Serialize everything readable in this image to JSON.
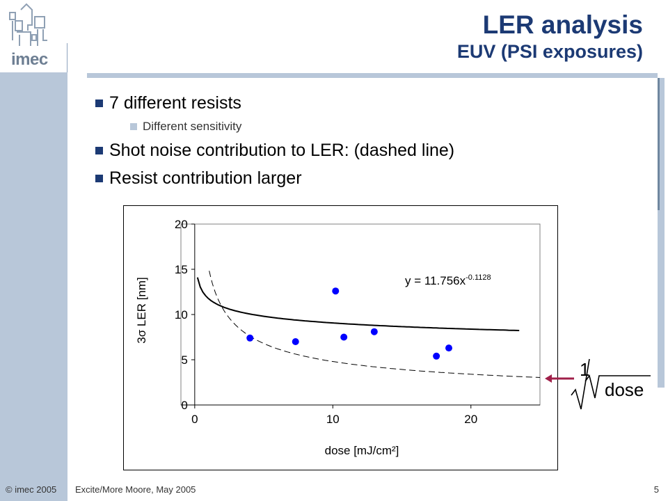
{
  "header": {
    "title": "LER analysis",
    "subtitle": "EUV (PSI exposures)",
    "logo_text": "imec"
  },
  "bullets": [
    {
      "text": "7 different resists",
      "level": 1
    },
    {
      "text": "Different sensitivity",
      "level": 2
    },
    {
      "text": "Shot noise contribution to LER: (dashed line)",
      "level": 1
    },
    {
      "text": "Resist contribution larger",
      "level": 1
    }
  ],
  "footer": {
    "copyright": "© imec 2005",
    "event": "Excite/More Moore, May 2005",
    "page": "5"
  },
  "side_formula": {
    "numerator": "1",
    "radicand": "dose"
  },
  "colors": {
    "accent": "#1c3a74",
    "sidebar": "#b8c7d9",
    "points": "#0000ff",
    "arrow": "#a0204a"
  },
  "chart_data": {
    "type": "scatter",
    "xlabel": "dose [mJ/cm²]",
    "ylabel": "3σ LER [nm]",
    "xlim": [
      -1,
      25
    ],
    "ylim": [
      0,
      20
    ],
    "xticks": [
      "0",
      "10",
      "20"
    ],
    "yticks": [
      "0",
      "5",
      "10",
      "15",
      "20"
    ],
    "grid": false,
    "points": [
      {
        "x": 4.0,
        "y": 7.4
      },
      {
        "x": 7.3,
        "y": 7.0
      },
      {
        "x": 10.2,
        "y": 12.6
      },
      {
        "x": 10.8,
        "y": 7.5
      },
      {
        "x": 13.0,
        "y": 8.1
      },
      {
        "x": 17.5,
        "y": 5.4
      },
      {
        "x": 18.4,
        "y": 6.3
      }
    ],
    "trendline": {
      "equation_label": "y = 11.756x",
      "exponent_label": "-0.1128",
      "a": 11.756,
      "b": -0.1128,
      "x_range": [
        0.2,
        23.5
      ],
      "style": "solid"
    },
    "shot_noise_curve": {
      "form": "k/sqrt(x)",
      "k": 15.2,
      "x_range": [
        1.05,
        25
      ],
      "style": "dashed"
    }
  }
}
